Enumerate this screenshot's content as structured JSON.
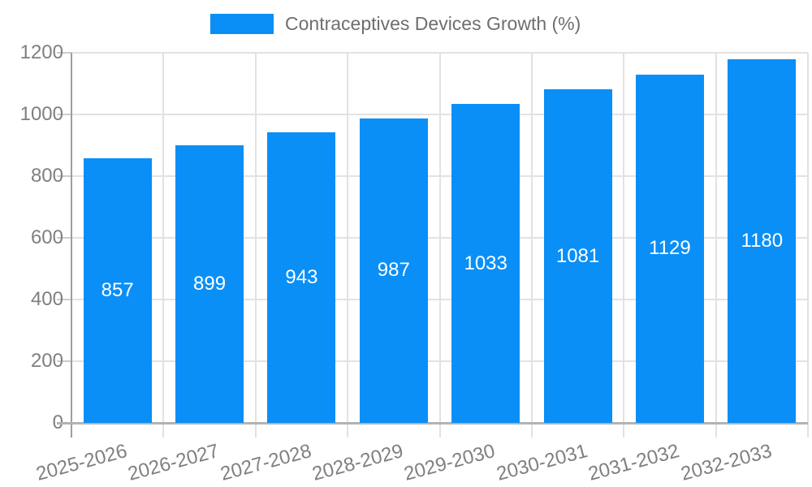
{
  "chart_data": {
    "type": "bar",
    "title": "",
    "legend": "Contraceptives Devices Growth (%)",
    "legend_position": "top",
    "categories": [
      "2025-2026",
      "2026-2027",
      "2027-2028",
      "2028-2029",
      "2029-2030",
      "2030-2031",
      "2031-2032",
      "2032-2033"
    ],
    "values": [
      857,
      899,
      943,
      987,
      1033,
      1081,
      1129,
      1180
    ],
    "xlabel": "",
    "ylabel": "",
    "ylim": [
      0,
      1200
    ],
    "yticks": [
      0,
      200,
      400,
      600,
      800,
      1000,
      1200
    ],
    "grid": true,
    "x_tick_label_rotation_deg": -15,
    "colors": {
      "bar": "#0a8ff7",
      "grid": "#e2e2e2",
      "x_axis_line": "#b3b3b3",
      "y_axis_line": "#9e9e9e",
      "tick": "#cccccc",
      "tick_label": "#7f7f7f",
      "value_label": "#ffffff",
      "legend_text": "#6e6e6e",
      "background": "#ffffff"
    }
  }
}
